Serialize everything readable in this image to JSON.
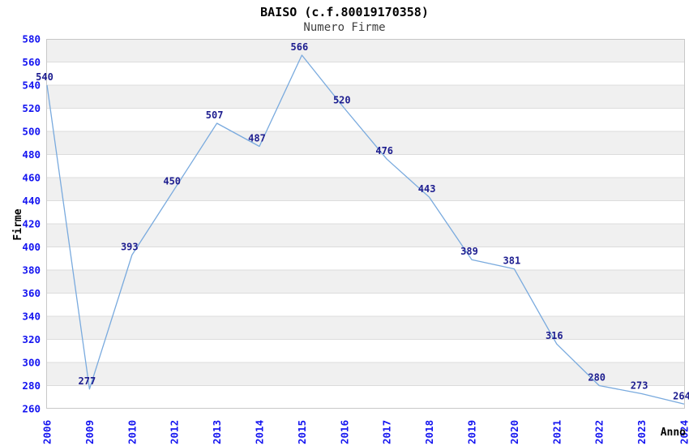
{
  "chart_data": {
    "type": "line",
    "title": "BAISO (c.f.80019170358)",
    "subtitle": "Numero Firme",
    "xlabel": "Anno",
    "ylabel": "Firme",
    "categories": [
      "2006",
      "2009",
      "2010",
      "2012",
      "2013",
      "2014",
      "2015",
      "2016",
      "2017",
      "2018",
      "2019",
      "2020",
      "2021",
      "2022",
      "2023",
      "2024"
    ],
    "values": [
      540,
      277,
      393,
      450,
      507,
      487,
      566,
      520,
      476,
      443,
      389,
      381,
      316,
      280,
      273,
      264
    ],
    "ylim": [
      260,
      580
    ],
    "ytick_step": 20,
    "grid": "horizontal",
    "legend": "none",
    "colors": {
      "line": "#79aade",
      "data_label": "#1d1d8f",
      "tick_label": "#1414f0",
      "axis_title": "#000000",
      "subtitle": "#3f3f3f",
      "band_gray": "#f0f0f0",
      "band_white": "#ffffff",
      "gridline": "#dcdcdc",
      "plot_border": "#c8c8c8",
      "background": "#ffffff"
    }
  }
}
